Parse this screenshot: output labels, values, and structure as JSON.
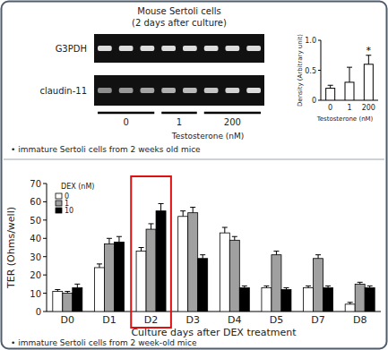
{
  "gel": {
    "title": "Mouse Sertoli cells",
    "subtitle": "(2 days after culture)",
    "rows": [
      "G3PDH",
      "claudin-11"
    ],
    "lane_groups": [
      "0",
      "1",
      "200"
    ],
    "xlabel": "Testosterone (nM)"
  },
  "notes": [
    "• immature Sertoli cells from 2 weeks old mice",
    "• immature Sertoli cells from 2 week-old mice"
  ],
  "chart_data": [
    {
      "type": "bar",
      "categories": [
        "0",
        "1",
        "200"
      ],
      "values": [
        0.2,
        0.3,
        0.6
      ],
      "errors": [
        0.05,
        0.25,
        0.15
      ],
      "color": "#ffffff",
      "ylabel": "Density (Arbitrary unit)",
      "xlabel": "Testosterone (nM)",
      "ylim": [
        0,
        1
      ],
      "yticks": [
        0,
        0.5,
        {
          "value": 1,
          "label": "1.0"
        }
      ],
      "annotations": [
        {
          "text": "*",
          "category": "200"
        }
      ]
    },
    {
      "type": "bar",
      "ylabel": "TER (Ohms/well)",
      "xlabel": "Culture days after DEX treatment",
      "categories": [
        "D0",
        "D1",
        "D2",
        "D3",
        "D4",
        "D5",
        "D7",
        "D8"
      ],
      "legend_title": "DEX (nM)",
      "legend": "upper left",
      "series": [
        {
          "name": "0",
          "color": "#ffffff",
          "values": [
            11,
            24,
            33,
            52,
            43,
            13,
            13,
            4
          ],
          "errors": [
            1,
            2,
            2,
            3,
            3,
            1,
            1,
            1
          ]
        },
        {
          "name": "1",
          "color": "#a0a0a0",
          "values": [
            10,
            37,
            45,
            54,
            39,
            31,
            29,
            15
          ],
          "errors": [
            1,
            3,
            3,
            3,
            2,
            2,
            2,
            1
          ]
        },
        {
          "name": "10",
          "color": "#000000",
          "values": [
            13,
            38,
            55,
            29,
            13,
            12,
            13,
            13
          ],
          "errors": [
            2,
            3,
            4,
            2,
            1,
            1,
            1,
            1
          ]
        }
      ],
      "ylim": [
        0,
        70
      ],
      "yticks": [
        0,
        10,
        20,
        30,
        40,
        50,
        60,
        70
      ]
    }
  ]
}
